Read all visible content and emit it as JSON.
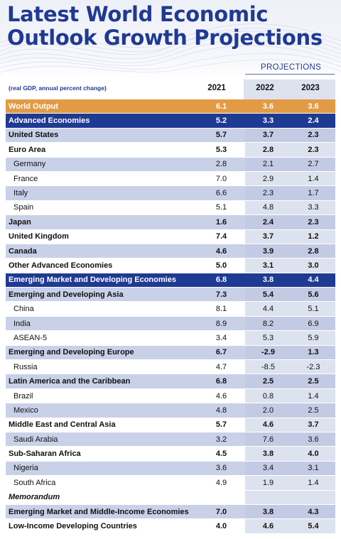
{
  "title_line1": "Latest World Economic",
  "title_line2": "Outlook Growth Projections",
  "projections_label": "PROJECTIONS",
  "subtitle": "(real GDP, annual percent change)",
  "years": [
    "2021",
    "2022",
    "2023"
  ],
  "rows": [
    {
      "label": "World Output",
      "v2021": "6.1",
      "v2022": "3.6",
      "v2023": "3.6"
    },
    {
      "label": "Advanced Economies",
      "v2021": "5.2",
      "v2022": "3.3",
      "v2023": "2.4"
    },
    {
      "label": "United States",
      "v2021": "5.7",
      "v2022": "3.7",
      "v2023": "2.3"
    },
    {
      "label": "Euro Area",
      "v2021": "5.3",
      "v2022": "2.8",
      "v2023": "2.3"
    },
    {
      "label": "Germany",
      "v2021": "2.8",
      "v2022": "2.1",
      "v2023": "2.7"
    },
    {
      "label": "France",
      "v2021": "7.0",
      "v2022": "2.9",
      "v2023": "1.4"
    },
    {
      "label": "Italy",
      "v2021": "6.6",
      "v2022": "2.3",
      "v2023": "1.7"
    },
    {
      "label": "Spain",
      "v2021": "5.1",
      "v2022": "4.8",
      "v2023": "3.3"
    },
    {
      "label": "Japan",
      "v2021": "1.6",
      "v2022": "2.4",
      "v2023": "2.3"
    },
    {
      "label": "United Kingdom",
      "v2021": "7.4",
      "v2022": "3.7",
      "v2023": "1.2"
    },
    {
      "label": "Canada",
      "v2021": "4.6",
      "v2022": "3.9",
      "v2023": "2.8"
    },
    {
      "label": "Other Advanced Economies",
      "v2021": "5.0",
      "v2022": "3.1",
      "v2023": "3.0"
    },
    {
      "label": "Emerging Market and Developing Economies",
      "v2021": "6.8",
      "v2022": "3.8",
      "v2023": "4.4"
    },
    {
      "label": "Emerging and Developing Asia",
      "v2021": "7.3",
      "v2022": "5.4",
      "v2023": "5.6"
    },
    {
      "label": "China",
      "v2021": "8.1",
      "v2022": "4.4",
      "v2023": "5.1"
    },
    {
      "label": "India",
      "v2021": "8.9",
      "v2022": "8.2",
      "v2023": "6.9"
    },
    {
      "label": "ASEAN-5",
      "v2021": "3.4",
      "v2022": "5.3",
      "v2023": "5.9"
    },
    {
      "label": "Emerging and Developing Europe",
      "v2021": "6.7",
      "v2022": "-2.9",
      "v2023": "1.3"
    },
    {
      "label": "Russia",
      "v2021": "4.7",
      "v2022": "-8.5",
      "v2023": "-2.3"
    },
    {
      "label": "Latin America and the Caribbean",
      "v2021": "6.8",
      "v2022": "2.5",
      "v2023": "2.5"
    },
    {
      "label": "Brazil",
      "v2021": "4.6",
      "v2022": "0.8",
      "v2023": "1.4"
    },
    {
      "label": "Mexico",
      "v2021": "4.8",
      "v2022": "2.0",
      "v2023": "2.5"
    },
    {
      "label": "Middle East and Central Asia",
      "v2021": "5.7",
      "v2022": "4.6",
      "v2023": "3.7"
    },
    {
      "label": "Saudi Arabia",
      "v2021": "3.2",
      "v2022": "7.6",
      "v2023": "3.6"
    },
    {
      "label": "Sub-Saharan Africa",
      "v2021": "4.5",
      "v2022": "3.8",
      "v2023": "4.0"
    },
    {
      "label": "Nigeria",
      "v2021": "3.6",
      "v2022": "3.4",
      "v2023": "3.1"
    },
    {
      "label": "South Africa",
      "v2021": "4.9",
      "v2022": "1.9",
      "v2023": "1.4"
    },
    {
      "label": "Memorandum",
      "v2021": "",
      "v2022": "",
      "v2023": ""
    },
    {
      "label": "Emerging Market and Middle-Income Economies",
      "v2021": "7.0",
      "v2022": "3.8",
      "v2023": "4.3"
    },
    {
      "label": "Low-Income Developing Countries",
      "v2021": "4.0",
      "v2022": "4.6",
      "v2023": "5.4"
    }
  ]
}
